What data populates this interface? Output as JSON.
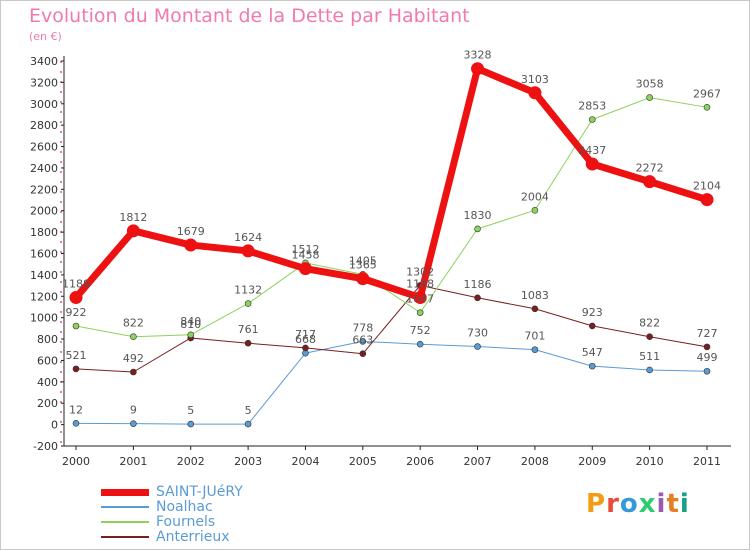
{
  "header": {
    "title": "Evolution du Montant de la Dette par Habitant",
    "subtitle": "(en €)"
  },
  "logo": {
    "text": "Proxiti",
    "colors": [
      "#f39c12",
      "#e74c3c",
      "#3498db",
      "#2ecc71",
      "#9b59b6",
      "#e67e22",
      "#16a085"
    ]
  },
  "chart_data": {
    "type": "line",
    "title": "Evolution du Montant de la Dette par Habitant",
    "subtitle": "(en €)",
    "xlabel": "",
    "ylabel": "",
    "ylim": [
      -200,
      3400
    ],
    "yticks": [
      -200,
      0,
      200,
      400,
      600,
      800,
      1000,
      1200,
      1400,
      1600,
      1800,
      2000,
      2200,
      2400,
      2600,
      2800,
      3000,
      3200,
      3400
    ],
    "categories": [
      "2000",
      "2001",
      "2002",
      "2003",
      "2004",
      "2005",
      "2006",
      "2007",
      "2008",
      "2009",
      "2010",
      "2011"
    ],
    "grid": false,
    "legend_position": "bottom-left",
    "series": [
      {
        "name": "Noalhac",
        "color": "#5b9bd5",
        "width": 1,
        "values": [
          12,
          9,
          5,
          5,
          668,
          778,
          752,
          730,
          701,
          547,
          511,
          499
        ],
        "labels": [
          "12",
          "9",
          "5",
          "5",
          "668",
          "778",
          "752",
          "730",
          "701",
          "547",
          "511",
          "499"
        ]
      },
      {
        "name": "Anterrieux",
        "color": "#7a1f1f",
        "width": 1,
        "values": [
          521,
          492,
          810,
          761,
          717,
          663,
          1302,
          1186,
          1083,
          923,
          822,
          727
        ],
        "labels": [
          "521",
          "492",
          "810",
          "761",
          "717",
          "663",
          "1302",
          "1186",
          "1083",
          "923",
          "822",
          "727"
        ]
      },
      {
        "name": "Fournels",
        "color": "#8bd35a",
        "width": 1,
        "values": [
          922,
          822,
          840,
          1132,
          1512,
          1405,
          1047,
          1830,
          2004,
          2853,
          3058,
          2967
        ],
        "labels": [
          "922",
          "822",
          "840",
          "1132",
          "1512",
          "1405",
          "1047",
          "1830",
          "2004",
          "2853",
          "3058",
          "2967"
        ]
      },
      {
        "name": "SAINT-JUéRY",
        "color": "#ee1111",
        "width": 7,
        "values": [
          1188,
          1812,
          1679,
          1624,
          1458,
          1365,
          1188,
          3328,
          3103,
          2437,
          2272,
          2104
        ],
        "labels": [
          "1188",
          "1812",
          "1679",
          "1624",
          "1458",
          "1365",
          "1188",
          "3328",
          "3103",
          "2437",
          "2272",
          "2104"
        ]
      }
    ]
  },
  "legend": {
    "items": [
      {
        "label": "SAINT-JUéRY",
        "color": "#ee1111",
        "width": 7
      },
      {
        "label": "Noalhac",
        "color": "#5b9bd5",
        "width": 2
      },
      {
        "label": "Fournels",
        "color": "#8bd35a",
        "width": 2
      },
      {
        "label": "Anterrieux",
        "color": "#7a1f1f",
        "width": 2
      }
    ]
  }
}
